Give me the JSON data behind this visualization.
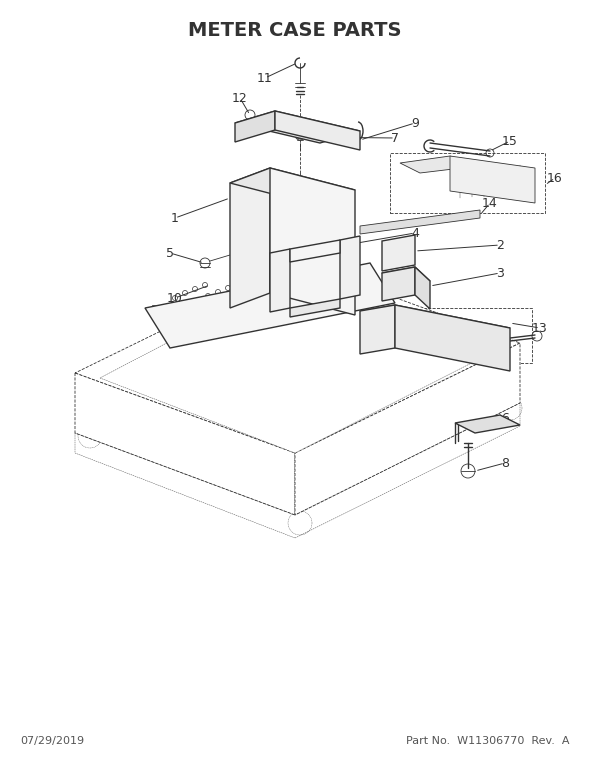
{
  "title": "METER CASE PARTS",
  "title_fontsize": 14,
  "title_fontweight": "bold",
  "background_color": "#ffffff",
  "line_color": "#333333",
  "footer_left": "07/29/2019",
  "footer_right": "Part No.  W11306770  Rev.  A",
  "footer_fontsize": 8
}
